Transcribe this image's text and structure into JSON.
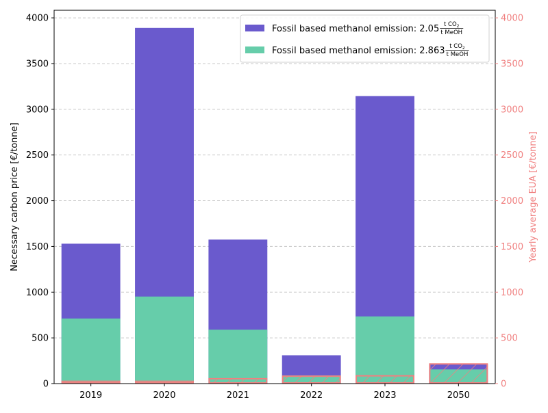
{
  "chart_data": {
    "type": "bar",
    "categories": [
      "2019",
      "2020",
      "2021",
      "2022",
      "2023",
      "2050"
    ],
    "series": [
      {
        "name": "Fossil based methanol emission: 2.05 t CO2 / t MeOH",
        "legend_prefix": "Fossil based methanol emission: 2.05",
        "values": [
          1530,
          3890,
          1575,
          310,
          3145,
          215
        ],
        "color": "#6a5acd"
      },
      {
        "name": "Fossil based methanol emission: 2.863 t CO2 / t MeOH",
        "legend_prefix": "Fossil based methanol emission: 2.863",
        "values": [
          712,
          952,
          590,
          90,
          735,
          155
        ],
        "color": "#66cdaa"
      }
    ],
    "eua_series": {
      "values": [
        25,
        25,
        53,
        81,
        85,
        215
      ],
      "edge_color": "#f08080"
    },
    "ylabel": "Necessary carbon price [€/tonne]",
    "ylabel_right": "Yearly average EUA [€/tonne]",
    "ylim": [
      0,
      4083
    ],
    "ylim_right": [
      0,
      4083
    ],
    "yticks": [
      0,
      500,
      1000,
      1500,
      2000,
      2500,
      3000,
      3500,
      4000
    ],
    "unit_fraction": {
      "numerator": "t CO",
      "subscript": "2",
      "denominator": "t MeOH"
    },
    "grid": "horizontal dashed",
    "legend_position": "top-right",
    "colors": {
      "axis_right": "#f08080",
      "grid": "#c8c8c8"
    }
  }
}
